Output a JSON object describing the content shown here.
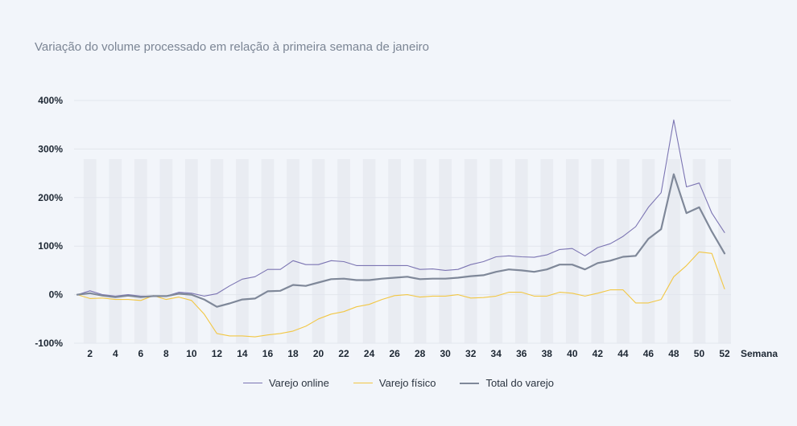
{
  "title": "Variação do volume processado em relação à primeira semana de janeiro",
  "chart_data": {
    "type": "line",
    "title": "Variação do volume processado em relação à primeira semana de janeiro",
    "xlabel": "Semana",
    "ylabel": "",
    "xlim": [
      1,
      52
    ],
    "ylim": [
      -100,
      400
    ],
    "yticks": [
      400,
      300,
      200,
      100,
      0,
      -100
    ],
    "ytick_labels": [
      "400%",
      "300%",
      "200%",
      "100%",
      "0%",
      "-100%"
    ],
    "xticks": [
      2,
      4,
      6,
      8,
      10,
      12,
      14,
      16,
      18,
      20,
      22,
      24,
      26,
      28,
      30,
      32,
      34,
      36,
      38,
      40,
      42,
      44,
      46,
      48,
      50,
      52
    ],
    "x": [
      1,
      2,
      3,
      4,
      5,
      6,
      7,
      8,
      9,
      10,
      11,
      12,
      13,
      14,
      15,
      16,
      17,
      18,
      19,
      20,
      21,
      22,
      23,
      24,
      25,
      26,
      27,
      28,
      29,
      30,
      31,
      32,
      33,
      34,
      35,
      36,
      37,
      38,
      39,
      40,
      41,
      42,
      43,
      44,
      45,
      46,
      47,
      48,
      49,
      50,
      51,
      52
    ],
    "legend_position": "bottom",
    "series": [
      {
        "name": "Varejo online",
        "color": "#7b74b2",
        "width": 1.1,
        "values": [
          0,
          8,
          0,
          -3,
          0,
          -3,
          -3,
          -3,
          5,
          3,
          -3,
          2,
          18,
          32,
          37,
          52,
          52,
          70,
          62,
          62,
          70,
          68,
          60,
          60,
          60,
          60,
          60,
          52,
          53,
          50,
          52,
          62,
          68,
          78,
          80,
          78,
          77,
          82,
          93,
          95,
          80,
          97,
          105,
          120,
          140,
          180,
          210,
          360,
          222,
          230,
          168,
          128
        ]
      },
      {
        "name": "Varejo físico",
        "color": "#f2c744",
        "width": 1.1,
        "values": [
          0,
          -8,
          -7,
          -10,
          -10,
          -12,
          -2,
          -10,
          -5,
          -12,
          -40,
          -80,
          -85,
          -85,
          -87,
          -83,
          -80,
          -75,
          -65,
          -50,
          -40,
          -35,
          -25,
          -20,
          -10,
          -2,
          0,
          -5,
          -3,
          -3,
          0,
          -7,
          -6,
          -3,
          5,
          5,
          -3,
          -3,
          5,
          3,
          -3,
          3,
          10,
          10,
          -17,
          -17,
          -10,
          37,
          60,
          88,
          85,
          12
        ]
      },
      {
        "name": "Total do varejo",
        "color": "#7f8899",
        "width": 2.2,
        "values": [
          0,
          3,
          -2,
          -5,
          -2,
          -5,
          -3,
          -3,
          2,
          0,
          -10,
          -25,
          -18,
          -10,
          -8,
          7,
          8,
          20,
          18,
          25,
          32,
          33,
          30,
          30,
          33,
          35,
          37,
          32,
          33,
          33,
          35,
          38,
          40,
          47,
          52,
          50,
          47,
          52,
          62,
          62,
          52,
          65,
          70,
          78,
          80,
          115,
          135,
          248,
          168,
          180,
          130,
          85
        ]
      }
    ]
  }
}
